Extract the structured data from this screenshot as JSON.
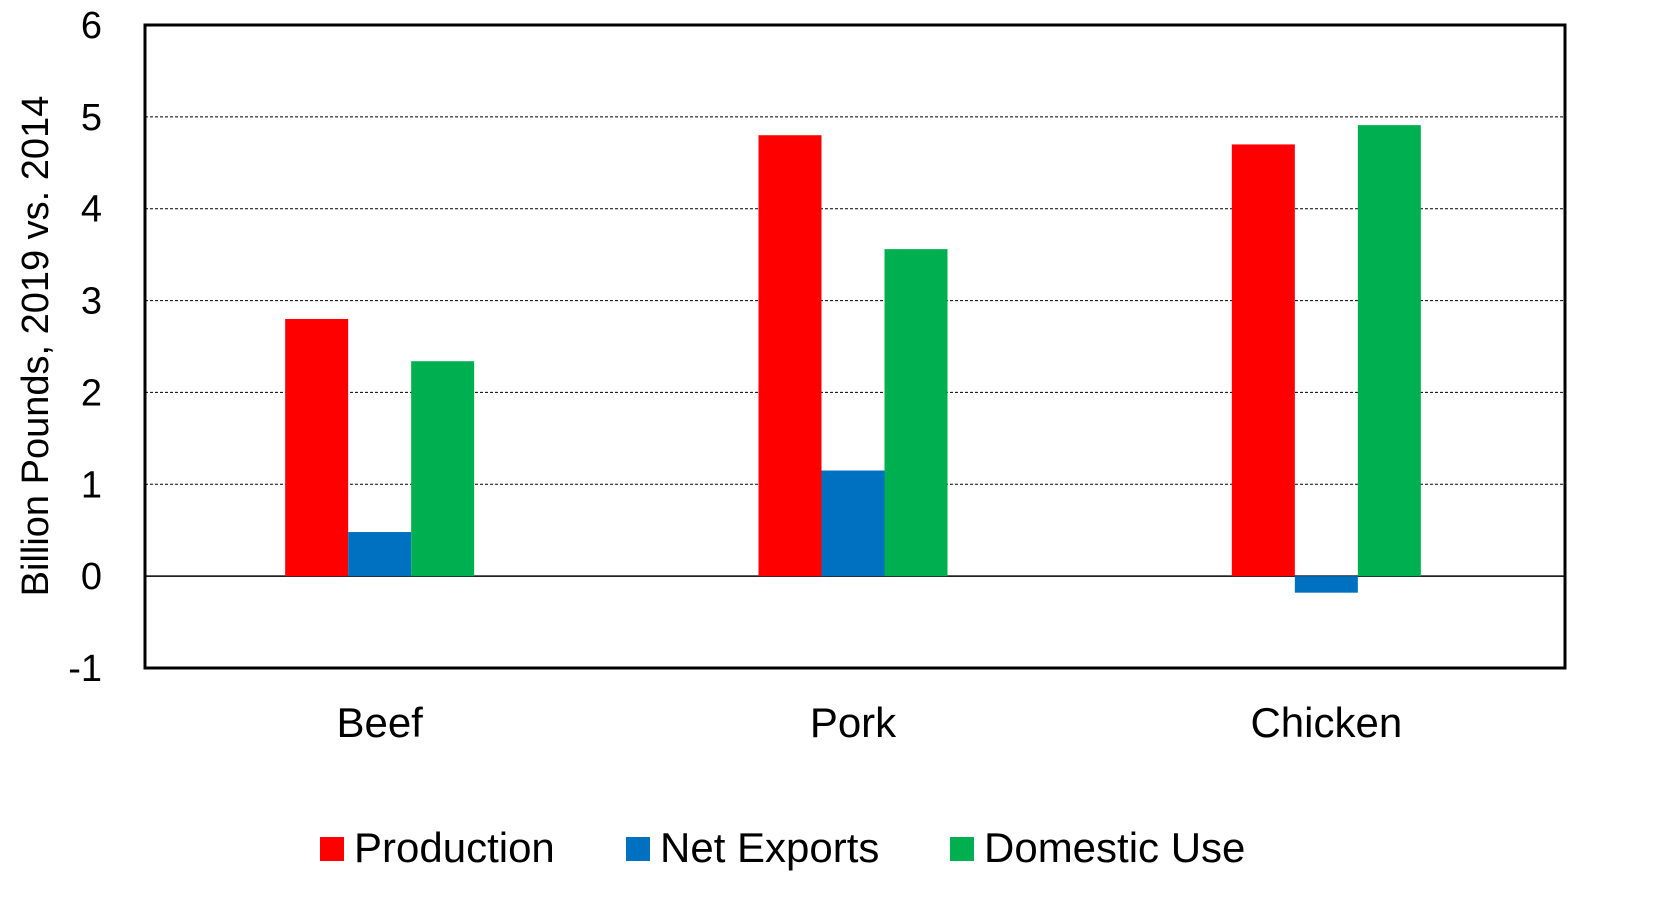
{
  "chart_data": {
    "type": "bar",
    "categories": [
      "Beef",
      "Pork",
      "Chicken"
    ],
    "series": [
      {
        "name": "Production",
        "color": "#ff0000",
        "values": [
          2.8,
          4.8,
          4.7
        ]
      },
      {
        "name": "Net Exports",
        "color": "#0070c0",
        "values": [
          0.48,
          1.15,
          -0.18
        ]
      },
      {
        "name": "Domestic Use",
        "color": "#00b050",
        "values": [
          2.34,
          3.56,
          4.91
        ]
      }
    ],
    "ylabel": "Billion Pounds, 2019 vs. 2014",
    "xlabel": "",
    "ylim": [
      -1,
      6
    ],
    "yticks": [
      "-1",
      "0",
      "1",
      "2",
      "3",
      "4",
      "5",
      "6"
    ],
    "grid": true,
    "legend_position": "bottom"
  }
}
